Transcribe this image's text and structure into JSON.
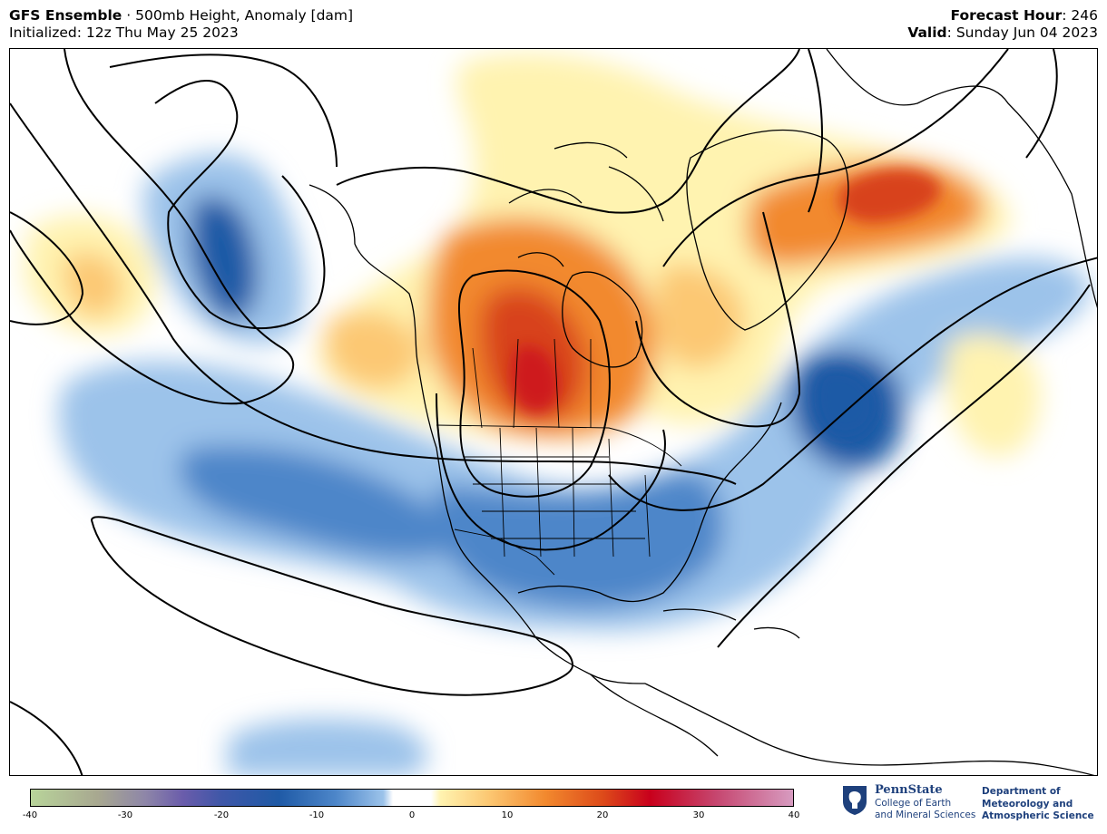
{
  "header": {
    "model": "GFS Ensemble",
    "separator": " · ",
    "product": "500mb Height, Anomaly [dam]",
    "init_label": "Initialized: 12z Thu May 25 2023",
    "fh_label": "Forecast Hour",
    "fh_value": ": 246",
    "valid_label": "Valid",
    "valid_value": ": Sunday Jun 04 2023"
  },
  "colorbar": {
    "ticks": [
      "-40",
      "-30",
      "-20",
      "-10",
      "0",
      "10",
      "20",
      "30",
      "40"
    ],
    "min": -40,
    "max": 40,
    "stops": [
      {
        "v": -40,
        "c": "#b8d49a"
      },
      {
        "v": -33,
        "c": "#a8a890"
      },
      {
        "v": -28,
        "c": "#8e86a8"
      },
      {
        "v": -24,
        "c": "#6a5cab"
      },
      {
        "v": -20,
        "c": "#3f57a8"
      },
      {
        "v": -14,
        "c": "#1f5aa6"
      },
      {
        "v": -8,
        "c": "#4d86c9"
      },
      {
        "v": -3,
        "c": "#9cc3ea"
      },
      {
        "v": -2,
        "c": "#ffffff"
      },
      {
        "v": 2,
        "c": "#ffffff"
      },
      {
        "v": 3,
        "c": "#fff3b0"
      },
      {
        "v": 8,
        "c": "#fcc873"
      },
      {
        "v": 14,
        "c": "#f2892e"
      },
      {
        "v": 20,
        "c": "#dd4b1a"
      },
      {
        "v": 25,
        "c": "#c8001c"
      },
      {
        "v": 32,
        "c": "#c64770"
      },
      {
        "v": 40,
        "c": "#d79bc0"
      }
    ]
  },
  "logo": {
    "name": "PennState",
    "college_line1": "College of Earth",
    "college_line2": "and Mineral Sciences",
    "dept_line1": "Department of",
    "dept_line2": "Meteorology and",
    "dept_line3": "Atmospheric Science"
  },
  "colors": {
    "neg_light": "#9cc3ea",
    "neg_mid": "#4d86c9",
    "neg_dark": "#1f5aa6",
    "pos_light": "#fff3b0",
    "pos_mid": "#fcc873",
    "pos_orange": "#f2892e",
    "pos_red": "#d8421a",
    "brand": "#1e407c"
  }
}
